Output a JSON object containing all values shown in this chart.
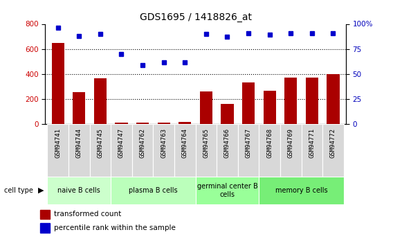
{
  "title": "GDS1695 / 1418826_at",
  "samples": [
    "GSM94741",
    "GSM94744",
    "GSM94745",
    "GSM94747",
    "GSM94762",
    "GSM94763",
    "GSM94764",
    "GSM94765",
    "GSM94766",
    "GSM94767",
    "GSM94768",
    "GSM94769",
    "GSM94771",
    "GSM94772"
  ],
  "transformed_count": [
    650,
    255,
    365,
    15,
    15,
    15,
    18,
    260,
    165,
    335,
    265,
    370,
    370,
    400
  ],
  "percentile_rank": [
    96,
    88,
    90,
    70,
    59,
    62,
    62,
    90,
    87,
    91,
    89,
    91,
    91,
    91
  ],
  "cell_groups": [
    {
      "label": "naive B cells",
      "start": 0,
      "end": 2,
      "color": "#ccffcc"
    },
    {
      "label": "plasma B cells",
      "start": 3,
      "end": 6,
      "color": "#aaffaa"
    },
    {
      "label": "germinal center B\ncells",
      "start": 7,
      "end": 9,
      "color": "#99ff99"
    },
    {
      "label": "memory B cells",
      "start": 10,
      "end": 13,
      "color": "#77ee77"
    }
  ],
  "bar_color": "#aa0000",
  "dot_color": "#0000cc",
  "ylim_left": [
    0,
    800
  ],
  "ylim_right": [
    0,
    100
  ],
  "yticks_left": [
    0,
    200,
    400,
    600,
    800
  ],
  "yticks_right": [
    0,
    25,
    50,
    75,
    100
  ],
  "grid_dotted_at": [
    200,
    400,
    600
  ],
  "background_color": "#ffffff",
  "tick_label_color_left": "#cc0000",
  "tick_label_color_right": "#0000bb",
  "cell_bg_gray": "#d8d8d8",
  "cell_bg_green1": "#ccffcc",
  "cell_bg_green2": "#aaffaa",
  "cell_bg_green3": "#99ff99",
  "cell_bg_green4": "#88ee88"
}
